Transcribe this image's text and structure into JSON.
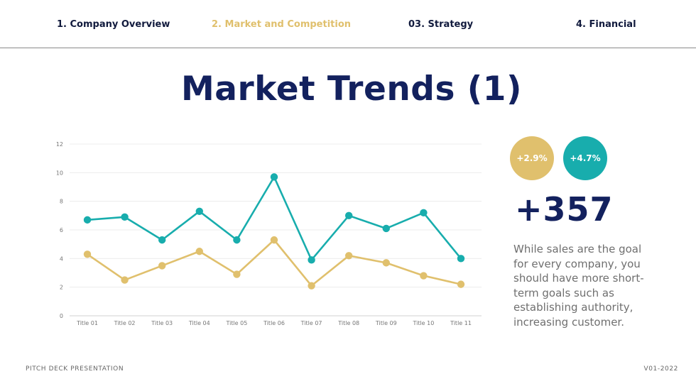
{
  "colors": {
    "gold": "#e0c06d",
    "teal": "#18adad",
    "navy": "#13215e"
  },
  "nav": {
    "items": [
      {
        "label": "1. Company Overview",
        "active": false
      },
      {
        "label": "2. Market and Competition",
        "active": true
      },
      {
        "label": "03. Strategy",
        "active": false
      },
      {
        "label": "4. Financial",
        "active": false
      }
    ]
  },
  "title": "Market Trends (1)",
  "chart_data": {
    "type": "line",
    "categories": [
      "Title 01",
      "Title 02",
      "Title 03",
      "Title 04",
      "Title 05",
      "Title 06",
      "Title 07",
      "Title 08",
      "Title 09",
      "Title 10",
      "Title 11"
    ],
    "series": [
      {
        "color": "#18adad",
        "values": [
          6.7,
          6.9,
          5.3,
          7.3,
          5.3,
          9.7,
          3.9,
          7.0,
          6.1,
          7.2,
          4.0
        ]
      },
      {
        "color": "#e0c06d",
        "values": [
          4.3,
          2.5,
          3.5,
          4.5,
          2.9,
          5.3,
          2.1,
          4.2,
          3.7,
          2.8,
          2.2
        ]
      }
    ],
    "ylim": [
      0,
      12
    ],
    "yticks": [
      0,
      2,
      4,
      6,
      8,
      10,
      12
    ],
    "grid": true,
    "legend": "none"
  },
  "stats": {
    "badge_gold": "+2.9%",
    "badge_teal": "+4.7%",
    "big_number": "+357",
    "description_lines": [
      "While sales are the goal",
      "for every company, you",
      "should have more short-",
      "term goals such as",
      "establishing authority,",
      "increasing customer."
    ]
  },
  "footer": {
    "left": "PITCH DECK PRESENTATION",
    "right": "V01-2022"
  }
}
